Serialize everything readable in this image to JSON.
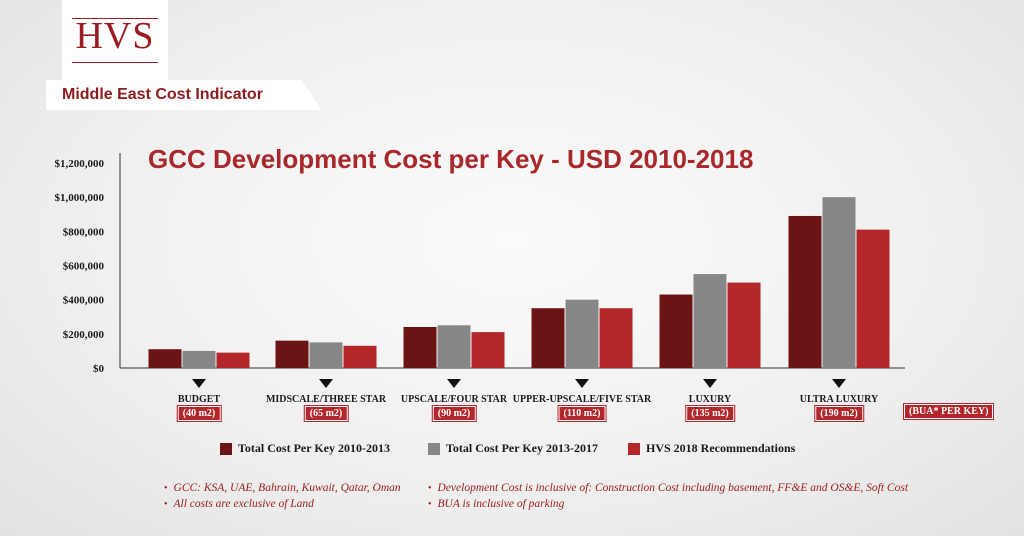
{
  "brand": {
    "logo_text": "HVS",
    "subtitle": "Middle East Cost Indicator",
    "accent_color": "#9b1b1e"
  },
  "chart_data": {
    "type": "bar",
    "title": "GCC Development Cost per Key - USD 2010-2018",
    "xlabel": "",
    "ylabel": "",
    "ylim": [
      0,
      1200000
    ],
    "yticks": [
      0,
      200000,
      400000,
      600000,
      800000,
      1000000,
      1200000
    ],
    "ytick_labels": [
      "$0",
      "$200,000",
      "$400,000",
      "$600,000",
      "$800,000",
      "$1,000,000",
      "$1,200,000"
    ],
    "categories": [
      "BUDGET",
      "MIDSCALE/THREE STAR",
      "UPSCALE/FOUR STAR",
      "UPPER-UPSCALE/FIVE STAR",
      "LUXURY",
      "ULTRA LUXURY"
    ],
    "bua": [
      "(40 m2)",
      "(65 m2)",
      "(90 m2)",
      "(110 m2)",
      "(135 m2)",
      "(190 m2)"
    ],
    "bua_key": "(BUA* PER KEY)",
    "series": [
      {
        "name": "Total Cost Per Key 2010-2013",
        "color": "#6b1416",
        "values": [
          110000,
          160000,
          240000,
          350000,
          430000,
          890000
        ]
      },
      {
        "name": "Total Cost Per Key 2013-2017",
        "color": "#878787",
        "values": [
          100000,
          150000,
          250000,
          400000,
          550000,
          1000000
        ]
      },
      {
        "name": "HVS 2018 Recommendations",
        "color": "#b3262a",
        "values": [
          90000,
          130000,
          210000,
          350000,
          500000,
          810000
        ]
      }
    ],
    "legend_position": "bottom"
  },
  "notes": [
    "GCC: KSA, UAE, Bahrain, Kuwait, Qatar, Oman",
    "All costs are exclusive of Land",
    "Development Cost is inclusive of: Construction Cost including basement, FF&E and OS&E, Soft Cost",
    "BUA is inclusive of parking"
  ],
  "bullet": "•"
}
